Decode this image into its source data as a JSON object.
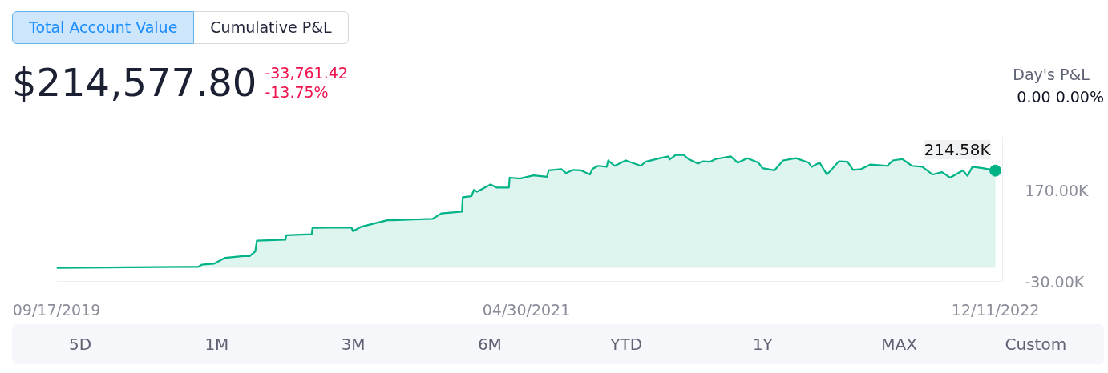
{
  "chart_data": {
    "type": "area",
    "title": "$214,577.80",
    "x": [
      "2019-09-17",
      "2020-02-19",
      "2020-03-13",
      "2020-03-18",
      "2020-04-02",
      "2020-04-16",
      "2020-05-09",
      "2020-05-17",
      "2020-05-24",
      "2020-05-26",
      "2020-07-01",
      "2020-07-02",
      "2020-08-03",
      "2020-08-04",
      "2020-09-22",
      "2020-09-24",
      "2020-10-05",
      "2020-11-06",
      "2020-11-12",
      "2021-01-02",
      "2021-01-13",
      "2021-02-08",
      "2021-02-09",
      "2021-02-20",
      "2021-02-23",
      "2021-02-27",
      "2021-03-16",
      "2021-03-24",
      "2021-04-08",
      "2021-04-09",
      "2021-04-22",
      "2021-05-09",
      "2021-05-26",
      "2021-05-28",
      "2021-06-13",
      "2021-06-19",
      "2021-06-28",
      "2021-07-08",
      "2021-07-19",
      "2021-07-22",
      "2021-07-29",
      "2021-08-09",
      "2021-08-11",
      "2021-08-19",
      "2021-09-02",
      "2021-09-21",
      "2021-09-27",
      "2021-10-15",
      "2021-10-26",
      "2021-10-27",
      "2021-11-04",
      "2021-11-14",
      "2021-11-20",
      "2021-12-02",
      "2021-12-07",
      "2021-12-17",
      "2021-12-24",
      "2022-01-12",
      "2022-01-21",
      "2022-02-02",
      "2022-02-16",
      "2022-02-21",
      "2022-03-08",
      "2022-03-19",
      "2022-04-04",
      "2022-04-20",
      "2022-04-24",
      "2022-05-04",
      "2022-05-13",
      "2022-05-18",
      "2022-05-28",
      "2022-06-08",
      "2022-06-15",
      "2022-06-25",
      "2022-07-07",
      "2022-07-28",
      "2022-08-04",
      "2022-08-16",
      "2022-08-28",
      "2022-09-10",
      "2022-09-23",
      "2022-10-05",
      "2022-10-15",
      "2022-10-31",
      "2022-11-06",
      "2022-11-12",
      "2022-11-25",
      "2022-12-11"
    ],
    "series": [
      {
        "color": "#00b386",
        "values": [
          0,
          2,
          2,
          7,
          9,
          22,
          26,
          26,
          36,
          60,
          62,
          72,
          74,
          88,
          89,
          81,
          91,
          105,
          105,
          108,
          120,
          124,
          156,
          158,
          172,
          168,
          184,
          177,
          177,
          199,
          197,
          204,
          201,
          215,
          218,
          209,
          216,
          215,
          206,
          218,
          225,
          223,
          237,
          225,
          237,
          225,
          234,
          242,
          246,
          239,
          249,
          249,
          240,
          230,
          235,
          234,
          240,
          246,
          232,
          242,
          232,
          220,
          215,
          237,
          242,
          232,
          223,
          232,
          206,
          215,
          235,
          234,
          216,
          218,
          228,
          225,
          237,
          240,
          225,
          223,
          206,
          211,
          199,
          215,
          203,
          223,
          220,
          214.58
        ]
      }
    ],
    "xlim": [
      "2019-09-17",
      "2022-12-20"
    ],
    "ylim": [
      -30,
      290
    ],
    "xticks": [
      {
        "value": "2019-09-17",
        "label": "09/17/2019"
      },
      {
        "value": "2021-04-30",
        "label": "04/30/2021"
      },
      {
        "value": "2022-12-11",
        "label": "12/11/2022"
      }
    ],
    "yticks": [
      {
        "value": 170,
        "label": "170.00K"
      },
      {
        "value": -30,
        "label": "-30.00K"
      }
    ],
    "annotations": [
      "Total Account Value",
      "Cumulative P&L",
      "-33,761.42",
      "-13.75%",
      "Day's P&L",
      "0.00 0.00%",
      "5D",
      "1M",
      "3M",
      "6M",
      "YTD",
      "1Y",
      "MAX",
      "Custom",
      {
        "text": "214.58K",
        "x": "2022-12-11",
        "y": 214.58
      }
    ]
  }
}
